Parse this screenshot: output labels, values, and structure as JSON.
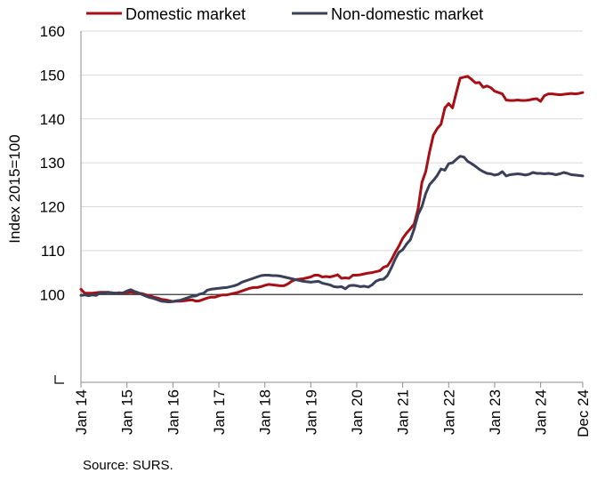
{
  "chart_data": {
    "type": "line",
    "ylabel": "Index 2015=100",
    "ylim": [
      80,
      160
    ],
    "yticks": [
      160,
      150,
      140,
      130,
      120,
      110,
      100
    ],
    "xlim": [
      "2014-01",
      "2024-12"
    ],
    "xticks": [
      {
        "date": "2014-01",
        "label": "Jan 14"
      },
      {
        "date": "2015-01",
        "label": "Jan 15"
      },
      {
        "date": "2016-01",
        "label": "Jan 16"
      },
      {
        "date": "2017-01",
        "label": "Jan 17"
      },
      {
        "date": "2018-01",
        "label": "Jan 18"
      },
      {
        "date": "2019-01",
        "label": "Jan 19"
      },
      {
        "date": "2020-01",
        "label": "Jan 20"
      },
      {
        "date": "2021-01",
        "label": "Jan 21"
      },
      {
        "date": "2022-01",
        "label": "Jan 22"
      },
      {
        "date": "2023-01",
        "label": "Jan 23"
      },
      {
        "date": "2024-01",
        "label": "Jan 24"
      },
      {
        "date": "2024-12",
        "label": "Dec 24"
      }
    ],
    "reference_line": 100,
    "legend_position": "top",
    "grid": "horizontal",
    "series": [
      {
        "name": "Domestic market",
        "color": "#a50f15",
        "points": [
          [
            "2014-01",
            101.2
          ],
          [
            "2014-02",
            100.3
          ],
          [
            "2014-03",
            100.3
          ],
          [
            "2014-04",
            100.3
          ],
          [
            "2014-05",
            100.4
          ],
          [
            "2014-06",
            100.5
          ],
          [
            "2014-07",
            100.5
          ],
          [
            "2014-08",
            100.5
          ],
          [
            "2014-09",
            100.4
          ],
          [
            "2014-10",
            100.3
          ],
          [
            "2014-11",
            100.4
          ],
          [
            "2014-12",
            100.3
          ],
          [
            "2015-01",
            100.4
          ],
          [
            "2015-02",
            100.5
          ],
          [
            "2015-03",
            100.4
          ],
          [
            "2015-04",
            100.3
          ],
          [
            "2015-05",
            100.2
          ],
          [
            "2015-06",
            99.9
          ],
          [
            "2015-07",
            99.7
          ],
          [
            "2015-08",
            99.4
          ],
          [
            "2015-09",
            99.2
          ],
          [
            "2015-10",
            98.9
          ],
          [
            "2015-11",
            98.8
          ],
          [
            "2015-12",
            98.6
          ],
          [
            "2016-01",
            98.4
          ],
          [
            "2016-02",
            98.5
          ],
          [
            "2016-03",
            98.5
          ],
          [
            "2016-04",
            98.6
          ],
          [
            "2016-05",
            98.7
          ],
          [
            "2016-06",
            98.8
          ],
          [
            "2016-07",
            98.5
          ],
          [
            "2016-08",
            98.6
          ],
          [
            "2016-09",
            98.9
          ],
          [
            "2016-10",
            99.2
          ],
          [
            "2016-11",
            99.4
          ],
          [
            "2016-12",
            99.4
          ],
          [
            "2017-01",
            99.7
          ],
          [
            "2017-02",
            99.9
          ],
          [
            "2017-03",
            99.9
          ],
          [
            "2017-04",
            100.1
          ],
          [
            "2017-05",
            100.3
          ],
          [
            "2017-06",
            100.5
          ],
          [
            "2017-07",
            100.8
          ],
          [
            "2017-08",
            101.1
          ],
          [
            "2017-09",
            101.4
          ],
          [
            "2017-10",
            101.6
          ],
          [
            "2017-11",
            101.6
          ],
          [
            "2017-12",
            101.8
          ],
          [
            "2018-01",
            102.1
          ],
          [
            "2018-02",
            102.3
          ],
          [
            "2018-03",
            102.2
          ],
          [
            "2018-04",
            102.1
          ],
          [
            "2018-05",
            102.0
          ],
          [
            "2018-06",
            102.0
          ],
          [
            "2018-07",
            102.4
          ],
          [
            "2018-08",
            103.0
          ],
          [
            "2018-09",
            103.4
          ],
          [
            "2018-10",
            103.5
          ],
          [
            "2018-11",
            103.6
          ],
          [
            "2018-12",
            103.8
          ],
          [
            "2019-01",
            104.0
          ],
          [
            "2019-02",
            104.4
          ],
          [
            "2019-03",
            104.4
          ],
          [
            "2019-04",
            104.0
          ],
          [
            "2019-05",
            104.1
          ],
          [
            "2019-06",
            104.0
          ],
          [
            "2019-07",
            104.2
          ],
          [
            "2019-08",
            104.5
          ],
          [
            "2019-09",
            103.7
          ],
          [
            "2019-10",
            103.8
          ],
          [
            "2019-11",
            103.7
          ],
          [
            "2019-12",
            104.4
          ],
          [
            "2020-01",
            104.4
          ],
          [
            "2020-02",
            104.5
          ],
          [
            "2020-03",
            104.7
          ],
          [
            "2020-04",
            104.9
          ],
          [
            "2020-05",
            105.0
          ],
          [
            "2020-06",
            105.2
          ],
          [
            "2020-07",
            105.4
          ],
          [
            "2020-08",
            106.2
          ],
          [
            "2020-09",
            106.5
          ],
          [
            "2020-10",
            107.8
          ],
          [
            "2020-11",
            109.5
          ],
          [
            "2020-12",
            111.0
          ],
          [
            "2021-01",
            112.8
          ],
          [
            "2021-02",
            114.0
          ],
          [
            "2021-03",
            115.0
          ],
          [
            "2021-04",
            116.1
          ],
          [
            "2021-05",
            119.5
          ],
          [
            "2021-06",
            125.5
          ],
          [
            "2021-07",
            128.0
          ],
          [
            "2021-08",
            132.5
          ],
          [
            "2021-09",
            136.3
          ],
          [
            "2021-10",
            137.8
          ],
          [
            "2021-11",
            138.8
          ],
          [
            "2021-12",
            142.5
          ],
          [
            "2022-01",
            143.5
          ],
          [
            "2022-02",
            142.5
          ],
          [
            "2022-03",
            146.0
          ],
          [
            "2022-04",
            149.3
          ],
          [
            "2022-05",
            149.5
          ],
          [
            "2022-06",
            149.7
          ],
          [
            "2022-07",
            149.0
          ],
          [
            "2022-08",
            148.2
          ],
          [
            "2022-09",
            148.3
          ],
          [
            "2022-10",
            147.2
          ],
          [
            "2022-11",
            147.5
          ],
          [
            "2022-12",
            147.1
          ],
          [
            "2023-01",
            146.3
          ],
          [
            "2023-02",
            146.0
          ],
          [
            "2023-03",
            145.7
          ],
          [
            "2023-04",
            144.3
          ],
          [
            "2023-05",
            144.2
          ],
          [
            "2023-06",
            144.2
          ],
          [
            "2023-07",
            144.3
          ],
          [
            "2023-08",
            144.2
          ],
          [
            "2023-09",
            144.2
          ],
          [
            "2023-10",
            144.3
          ],
          [
            "2023-11",
            144.5
          ],
          [
            "2023-12",
            144.6
          ],
          [
            "2024-01",
            144.0
          ],
          [
            "2024-02",
            145.3
          ],
          [
            "2024-03",
            145.7
          ],
          [
            "2024-04",
            145.7
          ],
          [
            "2024-05",
            145.6
          ],
          [
            "2024-06",
            145.5
          ],
          [
            "2024-07",
            145.6
          ],
          [
            "2024-08",
            145.7
          ],
          [
            "2024-09",
            145.8
          ],
          [
            "2024-10",
            145.7
          ],
          [
            "2024-11",
            145.8
          ],
          [
            "2024-12",
            146.0
          ]
        ]
      },
      {
        "name": "Non-domestic market",
        "color": "#3a4058",
        "points": [
          [
            "2014-01",
            99.8
          ],
          [
            "2014-02",
            99.9
          ],
          [
            "2014-03",
            99.7
          ],
          [
            "2014-04",
            99.9
          ],
          [
            "2014-05",
            99.8
          ],
          [
            "2014-06",
            100.4
          ],
          [
            "2014-07",
            100.2
          ],
          [
            "2014-08",
            100.5
          ],
          [
            "2014-09",
            100.4
          ],
          [
            "2014-10",
            100.3
          ],
          [
            "2014-11",
            100.2
          ],
          [
            "2014-12",
            100.4
          ],
          [
            "2015-01",
            100.8
          ],
          [
            "2015-02",
            101.1
          ],
          [
            "2015-03",
            100.7
          ],
          [
            "2015-04",
            100.4
          ],
          [
            "2015-05",
            100.0
          ],
          [
            "2015-06",
            99.6
          ],
          [
            "2015-07",
            99.3
          ],
          [
            "2015-08",
            99.1
          ],
          [
            "2015-09",
            98.8
          ],
          [
            "2015-10",
            98.5
          ],
          [
            "2015-11",
            98.4
          ],
          [
            "2015-12",
            98.3
          ],
          [
            "2016-01",
            98.4
          ],
          [
            "2016-02",
            98.6
          ],
          [
            "2016-03",
            98.7
          ],
          [
            "2016-04",
            99.0
          ],
          [
            "2016-05",
            99.3
          ],
          [
            "2016-06",
            99.6
          ],
          [
            "2016-07",
            99.7
          ],
          [
            "2016-08",
            100.1
          ],
          [
            "2016-09",
            100.3
          ],
          [
            "2016-10",
            101.0
          ],
          [
            "2016-11",
            101.2
          ],
          [
            "2016-12",
            101.3
          ],
          [
            "2017-01",
            101.4
          ],
          [
            "2017-02",
            101.5
          ],
          [
            "2017-03",
            101.6
          ],
          [
            "2017-04",
            101.8
          ],
          [
            "2017-05",
            102.0
          ],
          [
            "2017-06",
            102.3
          ],
          [
            "2017-07",
            102.8
          ],
          [
            "2017-08",
            103.1
          ],
          [
            "2017-09",
            103.4
          ],
          [
            "2017-10",
            103.7
          ],
          [
            "2017-11",
            104.0
          ],
          [
            "2017-12",
            104.3
          ],
          [
            "2018-01",
            104.4
          ],
          [
            "2018-02",
            104.4
          ],
          [
            "2018-03",
            104.3
          ],
          [
            "2018-04",
            104.3
          ],
          [
            "2018-05",
            104.2
          ],
          [
            "2018-06",
            104.0
          ],
          [
            "2018-07",
            103.8
          ],
          [
            "2018-08",
            103.6
          ],
          [
            "2018-09",
            103.4
          ],
          [
            "2018-10",
            103.2
          ],
          [
            "2018-11",
            103.0
          ],
          [
            "2018-12",
            102.9
          ],
          [
            "2019-01",
            102.8
          ],
          [
            "2019-02",
            102.9
          ],
          [
            "2019-03",
            103.0
          ],
          [
            "2019-04",
            102.6
          ],
          [
            "2019-05",
            102.4
          ],
          [
            "2019-06",
            102.2
          ],
          [
            "2019-07",
            101.8
          ],
          [
            "2019-08",
            101.7
          ],
          [
            "2019-09",
            101.8
          ],
          [
            "2019-10",
            101.3
          ],
          [
            "2019-11",
            102.0
          ],
          [
            "2019-12",
            102.1
          ],
          [
            "2020-01",
            102.0
          ],
          [
            "2020-02",
            101.8
          ],
          [
            "2020-03",
            101.9
          ],
          [
            "2020-04",
            101.7
          ],
          [
            "2020-05",
            102.2
          ],
          [
            "2020-06",
            103.0
          ],
          [
            "2020-07",
            103.4
          ],
          [
            "2020-08",
            103.5
          ],
          [
            "2020-09",
            104.3
          ],
          [
            "2020-10",
            106.0
          ],
          [
            "2020-11",
            108.0
          ],
          [
            "2020-12",
            109.6
          ],
          [
            "2021-01",
            110.2
          ],
          [
            "2021-02",
            111.5
          ],
          [
            "2021-03",
            112.5
          ],
          [
            "2021-04",
            115.0
          ],
          [
            "2021-05",
            118.2
          ],
          [
            "2021-06",
            120.0
          ],
          [
            "2021-07",
            123.0
          ],
          [
            "2021-08",
            125.0
          ],
          [
            "2021-09",
            126.0
          ],
          [
            "2021-10",
            127.1
          ],
          [
            "2021-11",
            128.6
          ],
          [
            "2021-12",
            128.3
          ],
          [
            "2022-01",
            129.8
          ],
          [
            "2022-02",
            130.0
          ],
          [
            "2022-03",
            130.8
          ],
          [
            "2022-04",
            131.5
          ],
          [
            "2022-05",
            131.3
          ],
          [
            "2022-06",
            130.3
          ],
          [
            "2022-07",
            129.8
          ],
          [
            "2022-08",
            129.2
          ],
          [
            "2022-09",
            128.5
          ],
          [
            "2022-10",
            128.0
          ],
          [
            "2022-11",
            127.6
          ],
          [
            "2022-12",
            127.5
          ],
          [
            "2023-01",
            127.2
          ],
          [
            "2023-02",
            127.4
          ],
          [
            "2023-03",
            128.0
          ],
          [
            "2023-04",
            127.0
          ],
          [
            "2023-05",
            127.3
          ],
          [
            "2023-06",
            127.4
          ],
          [
            "2023-07",
            127.5
          ],
          [
            "2023-08",
            127.4
          ],
          [
            "2023-09",
            127.2
          ],
          [
            "2023-10",
            127.4
          ],
          [
            "2023-11",
            127.8
          ],
          [
            "2023-12",
            127.6
          ],
          [
            "2024-01",
            127.6
          ],
          [
            "2024-02",
            127.5
          ],
          [
            "2024-03",
            127.6
          ],
          [
            "2024-04",
            127.5
          ],
          [
            "2024-05",
            127.3
          ],
          [
            "2024-06",
            127.5
          ],
          [
            "2024-07",
            127.8
          ],
          [
            "2024-08",
            127.6
          ],
          [
            "2024-09",
            127.3
          ],
          [
            "2024-10",
            127.2
          ],
          [
            "2024-11",
            127.1
          ],
          [
            "2024-12",
            127.0
          ]
        ]
      }
    ]
  },
  "footer": {
    "source": "Source: SURS."
  }
}
